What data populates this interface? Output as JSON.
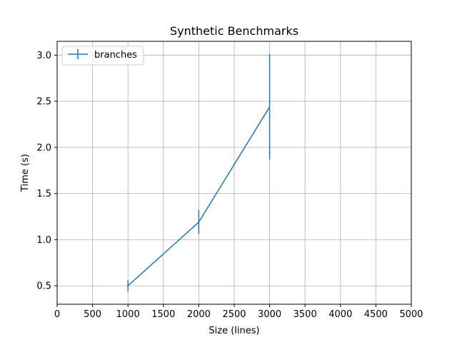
{
  "chart_data": {
    "type": "line",
    "title": "Synthetic Benchmarks",
    "xlabel": "Size (lines)",
    "ylabel": "Time (s)",
    "xlim": [
      0,
      5000
    ],
    "ylim": [
      0.3,
      3.15
    ],
    "xticks": [
      0,
      500,
      1000,
      1500,
      2000,
      2500,
      3000,
      3500,
      4000,
      4500,
      5000
    ],
    "yticks": [
      0.5,
      1.0,
      1.5,
      2.0,
      2.5,
      3.0
    ],
    "ytick_labels": [
      "0.5",
      "1.0",
      "1.5",
      "2.0",
      "2.5",
      "3.0"
    ],
    "grid": true,
    "legend_position": "top-left",
    "series": [
      {
        "name": "branches",
        "color": "#1f77b4",
        "x": [
          1000,
          2000,
          3000
        ],
        "y": [
          0.5,
          1.19,
          2.44
        ],
        "yerr_low": [
          0.44,
          1.06,
          1.87
        ],
        "yerr_high": [
          0.56,
          1.32,
          3.01
        ]
      }
    ]
  }
}
